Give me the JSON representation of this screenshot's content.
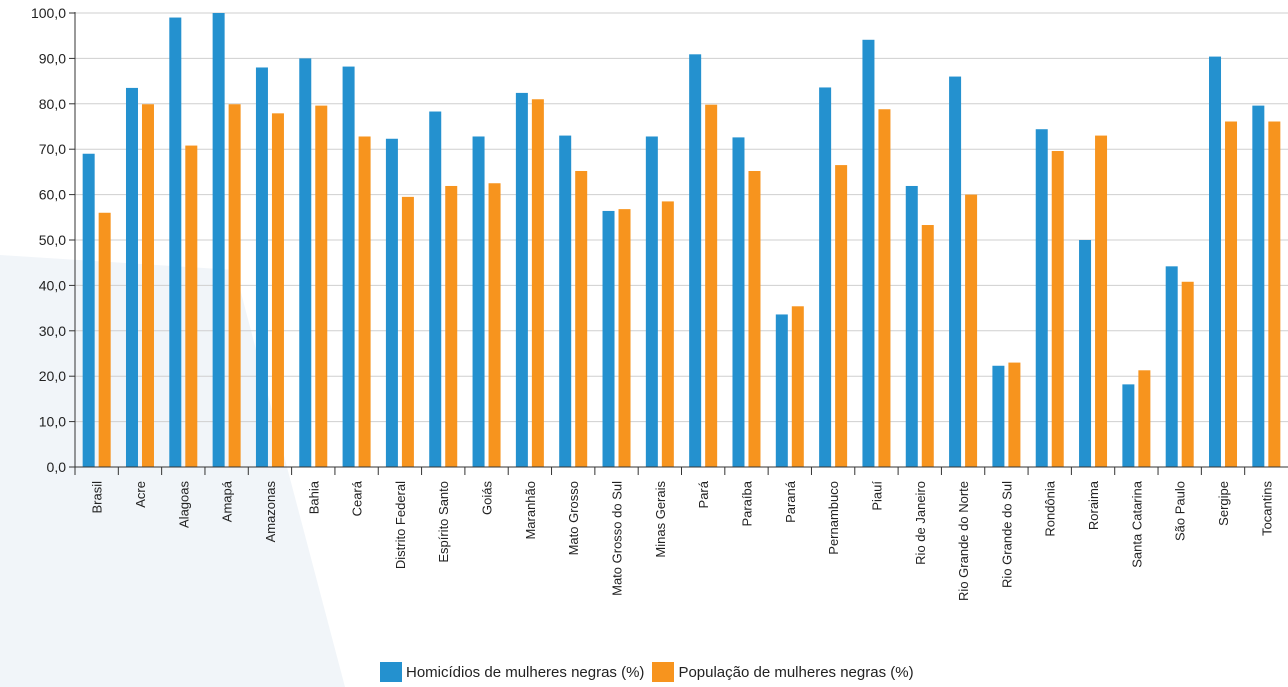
{
  "colors": {
    "series1": "#2491CF",
    "series2": "#F7941E",
    "grid": "#cfcfcf",
    "axis": "#333333",
    "bg_shape": "#F1F5F9"
  },
  "chart_data": {
    "type": "bar",
    "title": "",
    "xlabel": "",
    "ylabel": "",
    "ylim": [
      0,
      100
    ],
    "yticks": [
      "0,0",
      "10,0",
      "20,0",
      "30,0",
      "40,0",
      "50,0",
      "60,0",
      "70,0",
      "80,0",
      "90,0",
      "100,0"
    ],
    "grid": true,
    "legend_position": "bottom-center",
    "categories": [
      "Brasil",
      "Acre",
      "Alagoas",
      "Amapá",
      "Amazonas",
      "Bahia",
      "Ceará",
      "Distrito Federal",
      "Espírito Santo",
      "Goiás",
      "Maranhão",
      "Mato Grosso",
      "Mato Grosso do Sul",
      "Minas Gerais",
      "Pará",
      "Paraíba",
      "Paraná",
      "Pernambuco",
      "Piauí",
      "Rio de Janeiro",
      "Rio Grande do Norte",
      "Rio Grande do Sul",
      "Rondônia",
      "Roraima",
      "Santa Catarina",
      "São Paulo",
      "Sergipe",
      "Tocantins"
    ],
    "series": [
      {
        "name": "Homicídios de mulheres negras  (%)",
        "values": [
          69,
          83.5,
          99,
          100,
          88,
          90,
          88.2,
          72.3,
          78.3,
          72.8,
          82.4,
          73,
          56.4,
          72.8,
          90.9,
          72.6,
          33.6,
          83.6,
          94.1,
          61.9,
          86,
          22.3,
          74.4,
          50,
          18.2,
          44.2,
          90.4,
          79.6
        ]
      },
      {
        "name": "População de mulheres negras (%)",
        "values": [
          56,
          79.9,
          70.8,
          79.9,
          77.9,
          79.6,
          72.8,
          59.5,
          61.9,
          62.5,
          81,
          65.2,
          56.8,
          58.5,
          79.8,
          65.2,
          35.4,
          66.5,
          78.8,
          53.3,
          60,
          23,
          69.6,
          73,
          21.3,
          40.8,
          76.1,
          76.1
        ]
      }
    ]
  }
}
